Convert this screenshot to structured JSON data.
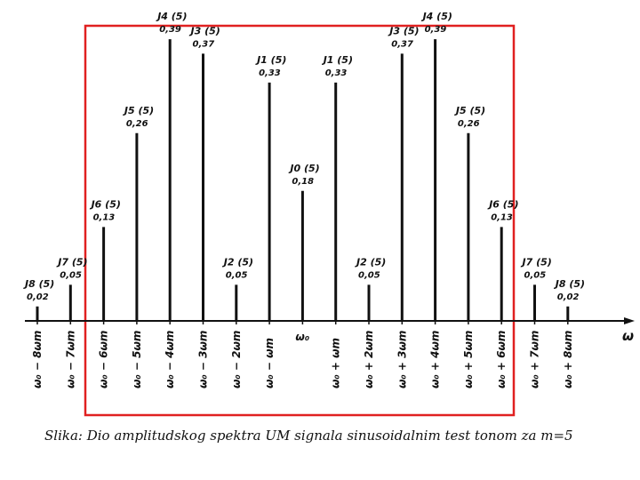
{
  "chart_data": {
    "type": "bar",
    "categories": [
      "ω₀ − 8ωm",
      "ω₀ − 7ωm",
      "ω₀ − 6ωm",
      "ω₀ − 5ωm",
      "ω₀ − 4ωm",
      "ω₀ − 3ωm",
      "ω₀ − 2ωm",
      "ω₀ − ωm",
      "ω₀",
      "ω₀ + ωm",
      "ω₀ + 2ωm",
      "ω₀ + 3ωm",
      "ω₀ + 4ωm",
      "ω₀ + 5ωm",
      "ω₀ + 6ωm",
      "ω₀ + 7ωm",
      "ω₀ + 8ωm"
    ],
    "labels": [
      "J8 (5)",
      "J7 (5)",
      "J6 (5)",
      "J5 (5)",
      "J4 (5)",
      "J3 (5)",
      "J2 (5)",
      "J1 (5)",
      "J0 (5)",
      "J1 (5)",
      "J2 (5)",
      "J3 (5)",
      "J4 (5)",
      "J5 (5)",
      "J6 (5)",
      "J7 (5)",
      "J8 (5)"
    ],
    "values": [
      0.02,
      0.05,
      0.13,
      0.26,
      0.39,
      0.37,
      0.05,
      0.33,
      0.18,
      0.33,
      0.05,
      0.37,
      0.39,
      0.26,
      0.13,
      0.05,
      0.02
    ],
    "value_labels": [
      "0,02",
      "0,05",
      "0,13",
      "0,26",
      "0,39",
      "0,37",
      "0,05",
      "0,33",
      "0,18",
      "0,33",
      "0,05",
      "0,37",
      "0,39",
      "0,26",
      "0,13",
      "0,05",
      "0,02"
    ],
    "xlabel": "ω",
    "ylim": [
      0,
      0.4
    ],
    "grid": false,
    "highlight_color": "#e02020",
    "line_color": "#111111"
  },
  "caption": "Slika: Dio amplitudskog spektra UM signala sinusoidalnim test tonom za m=5"
}
